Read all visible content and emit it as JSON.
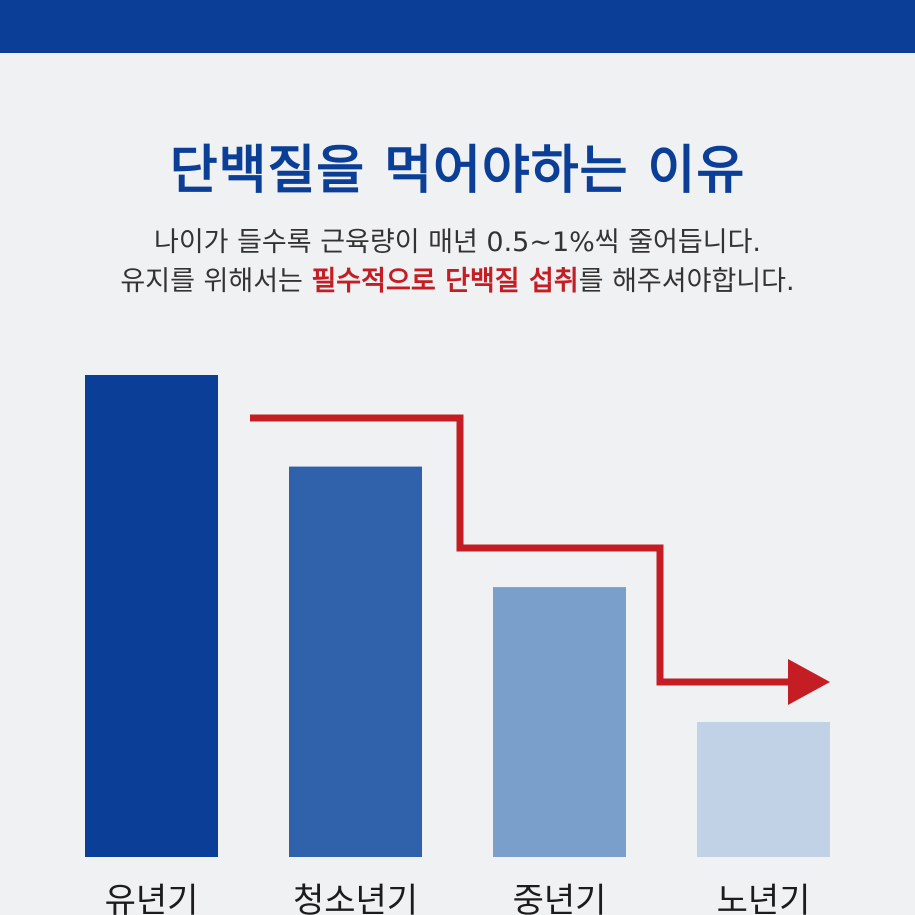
{
  "header": {
    "title": "단백질을 먹어야하는 이유",
    "line1": "나이가 들수록 근육량이 매년 0.5~1%씩 줄어듭니다.",
    "line2_before": "유지를 위해서는 ",
    "line2_highlight": "필수적으로 단백질 섭취",
    "line2_after": "를  해주셔야합니다."
  },
  "colors": {
    "brand": "#0b3f97",
    "highlight": "#c41e24",
    "arrow": "#c41e24"
  },
  "chart_data": {
    "type": "bar",
    "categories": [
      "유년기",
      "청소년기",
      "중년기",
      "노년기"
    ],
    "values": [
      100,
      81,
      56,
      28
    ],
    "colors": [
      "#0b3f97",
      "#2f62aa",
      "#7a9fca",
      "#c1d2e6"
    ],
    "ylim": [
      0,
      100
    ],
    "grid": false,
    "legend": "none",
    "title": "",
    "xlabel": "",
    "ylabel": "",
    "trend_arrow": "decreasing step arrow"
  }
}
